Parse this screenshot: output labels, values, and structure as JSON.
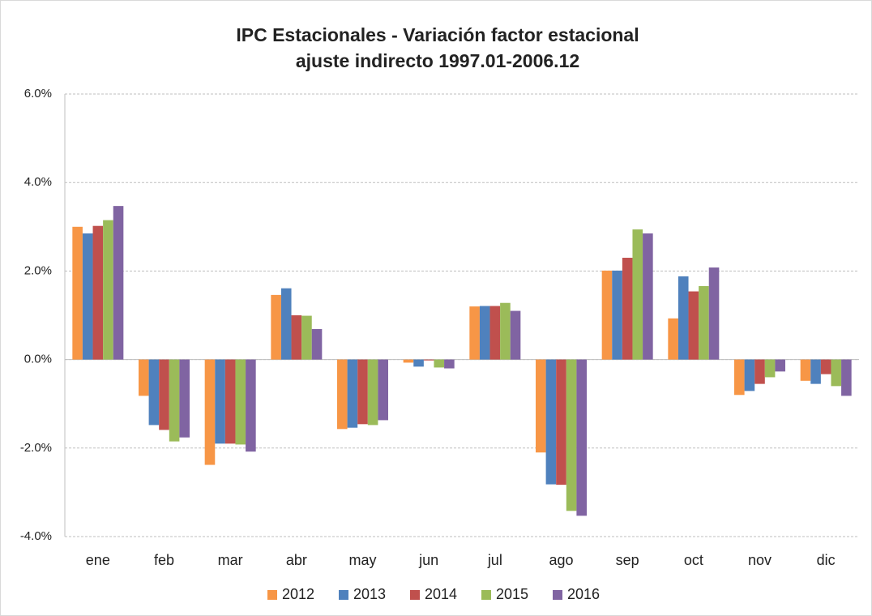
{
  "chart_data": {
    "type": "bar",
    "title": [
      "IPC Estacionales - Variación factor estacional",
      "ajuste indirecto 1997.01-2006.12"
    ],
    "categories": [
      "ene",
      "feb",
      "mar",
      "abr",
      "may",
      "jun",
      "jul",
      "ago",
      "sep",
      "oct",
      "nov",
      "dic"
    ],
    "series": [
      {
        "name": "2012",
        "color": "#f79646",
        "values": [
          3.0,
          -0.82,
          -2.38,
          1.46,
          -1.57,
          -0.07,
          1.2,
          -2.1,
          2.01,
          0.93,
          -0.8,
          -0.48
        ]
      },
      {
        "name": "2013",
        "color": "#4f81bd",
        "values": [
          2.85,
          -1.48,
          -1.9,
          1.61,
          -1.54,
          -0.16,
          1.21,
          -2.82,
          2.01,
          1.88,
          -0.71,
          -0.55
        ]
      },
      {
        "name": "2014",
        "color": "#c0504d",
        "values": [
          3.02,
          -1.59,
          -1.9,
          1.0,
          -1.46,
          -0.02,
          1.21,
          -2.83,
          2.3,
          1.54,
          -0.55,
          -0.33
        ]
      },
      {
        "name": "2015",
        "color": "#9bbb59",
        "values": [
          3.15,
          -1.85,
          -1.92,
          0.99,
          -1.48,
          -0.18,
          1.28,
          -3.42,
          2.94,
          1.66,
          -0.4,
          -0.6
        ]
      },
      {
        "name": "2016",
        "color": "#8064a2",
        "values": [
          3.47,
          -1.76,
          -2.08,
          0.69,
          -1.37,
          -0.2,
          1.1,
          -3.53,
          2.85,
          2.08,
          -0.27,
          -0.82
        ]
      }
    ],
    "ylim": [
      -4,
      6
    ],
    "yticks": [
      {
        "value": -4,
        "label": "-4.0%"
      },
      {
        "value": -2,
        "label": "-2.0%"
      },
      {
        "value": 0,
        "label": "0.0%"
      },
      {
        "value": 2,
        "label": "2.0%"
      },
      {
        "value": 4,
        "label": "4.0%"
      },
      {
        "value": 6,
        "label": "6.0%"
      }
    ],
    "grid": true,
    "legend": "bottom"
  }
}
